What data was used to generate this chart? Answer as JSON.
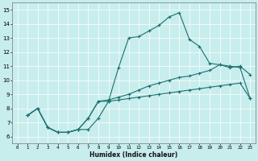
{
  "xlabel": "Humidex (Indice chaleur)",
  "xlim": [
    -0.5,
    23.5
  ],
  "ylim": [
    5.5,
    15.5
  ],
  "xticks": [
    0,
    1,
    2,
    3,
    4,
    5,
    6,
    7,
    8,
    9,
    10,
    11,
    12,
    13,
    14,
    15,
    16,
    17,
    18,
    19,
    20,
    21,
    22,
    23
  ],
  "yticks": [
    6,
    7,
    8,
    9,
    10,
    11,
    12,
    13,
    14,
    15
  ],
  "bg_color": "#c8eded",
  "line_color": "#1a7070",
  "line1_x": [
    1,
    2,
    3,
    4,
    5,
    6,
    7,
    8,
    9,
    10,
    11,
    12,
    13,
    14,
    15,
    16,
    17,
    18,
    19,
    20,
    21,
    22,
    23
  ],
  "line1_y": [
    7.5,
    8.0,
    6.65,
    6.3,
    6.3,
    6.5,
    6.5,
    7.3,
    8.5,
    10.9,
    13.0,
    13.1,
    13.5,
    13.9,
    14.5,
    14.8,
    12.9,
    12.4,
    11.2,
    11.1,
    10.9,
    11.0,
    10.4
  ],
  "line2_x": [
    1,
    2,
    3,
    4,
    5,
    6,
    7,
    8,
    9,
    10,
    11,
    12,
    13,
    14,
    15,
    16,
    17,
    18,
    19,
    20,
    21,
    22,
    23
  ],
  "line2_y": [
    7.5,
    8.0,
    6.65,
    6.3,
    6.3,
    6.5,
    7.3,
    8.5,
    8.6,
    8.8,
    9.0,
    9.3,
    9.6,
    9.8,
    10.0,
    10.2,
    10.3,
    10.5,
    10.7,
    11.1,
    11.0,
    10.9,
    8.7
  ],
  "line3_x": [
    1,
    2,
    3,
    4,
    5,
    6,
    7,
    8,
    9,
    10,
    11,
    12,
    13,
    14,
    15,
    16,
    17,
    18,
    19,
    20,
    21,
    22,
    23
  ],
  "line3_y": [
    7.5,
    8.0,
    6.65,
    6.3,
    6.3,
    6.5,
    7.3,
    8.5,
    8.5,
    8.6,
    8.7,
    8.8,
    8.9,
    9.0,
    9.1,
    9.2,
    9.3,
    9.4,
    9.5,
    9.6,
    9.7,
    9.8,
    8.7
  ]
}
